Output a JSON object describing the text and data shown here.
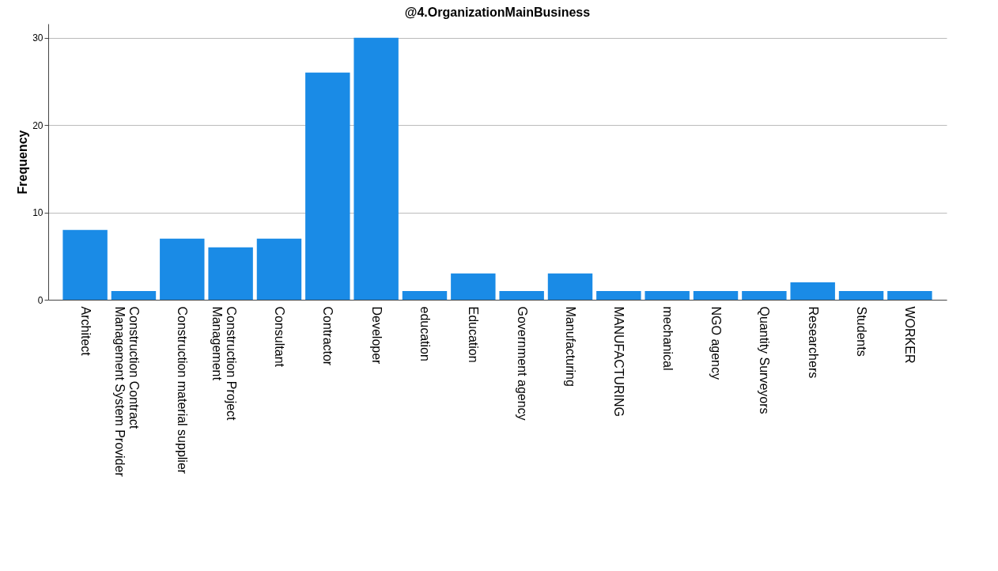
{
  "chart_data": {
    "type": "bar",
    "title": "@4.OrganizationMainBusiness",
    "ylabel": "Frequency",
    "categories": [
      "Architect",
      "Construction Contract Management System Provider",
      "Construction material supplier",
      "Construction Project Management",
      "Consultant",
      "Contractor",
      "Developer",
      "education",
      "Education",
      "Government agency",
      "Manufacturing",
      "MANUFACTURING",
      "mechanical",
      "NGO agency",
      "Quantity Surveyors",
      "Researchers",
      "Students",
      "WORKER"
    ],
    "values": [
      8,
      1,
      7,
      6,
      7,
      26,
      30,
      1,
      3,
      1,
      3,
      1,
      1,
      1,
      1,
      2,
      1,
      1
    ],
    "color": "#1a8be6",
    "ylim": [
      0,
      31.6
    ],
    "yticks": [
      0,
      10,
      20,
      30
    ],
    "grid": "y"
  }
}
